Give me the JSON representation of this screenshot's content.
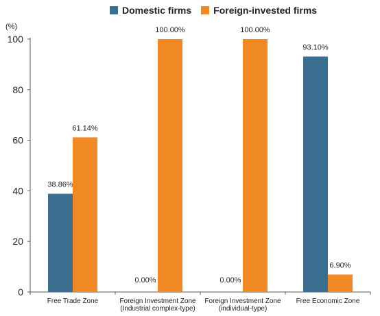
{
  "chart_data": {
    "type": "bar",
    "unit_label": "(%)",
    "categories": [
      [
        "Free Trade Zone"
      ],
      [
        "Foreign Investment Zone",
        "(Industrial complex-type)"
      ],
      [
        "Foreign Investment Zone",
        "(individual-type)"
      ],
      [
        "Free Economic Zone"
      ]
    ],
    "series": [
      {
        "name": "Domestic firms",
        "color": "#3b6f91",
        "values": [
          38.86,
          0.0,
          0.0,
          93.1
        ],
        "labels": [
          "38.86%",
          "0.00%",
          "0.00%",
          "93.10%"
        ]
      },
      {
        "name": "Foreign-invested firms",
        "color": "#f18a24",
        "values": [
          61.14,
          100.0,
          100.0,
          6.9
        ],
        "labels": [
          "61.14%",
          "100.00%",
          "100.00%",
          "6.90%"
        ]
      }
    ],
    "ylim": [
      0,
      100
    ],
    "yticks": [
      "0",
      "20",
      "40",
      "60",
      "80",
      "100"
    ],
    "grid": false,
    "legend_position": "top"
  }
}
